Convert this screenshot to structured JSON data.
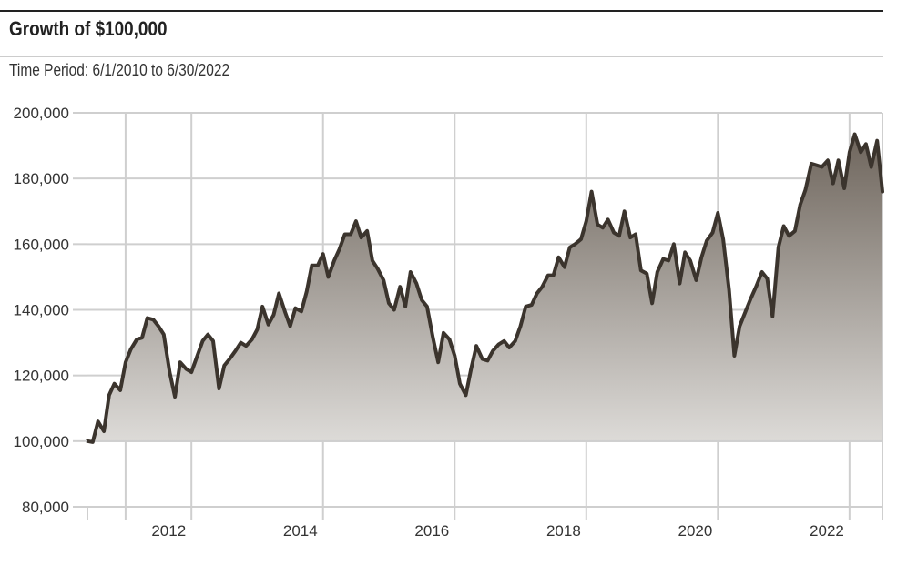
{
  "header": {
    "title": "Growth of $100,000",
    "subtitle": "Time Period: 6/1/2010 to 6/30/2022"
  },
  "chart_data": {
    "type": "area",
    "title": "Growth of $100,000",
    "subtitle": "Time Period: 6/1/2010 to 6/30/2022",
    "xlabel": "",
    "ylabel": "",
    "xlim": [
      2010.42,
      2022.5
    ],
    "ylim": [
      80000,
      200000
    ],
    "y_ticks": [
      80000,
      100000,
      120000,
      140000,
      160000,
      180000,
      200000
    ],
    "y_tick_labels": [
      "80,000",
      "100,000",
      "120,000",
      "140,000",
      "160,000",
      "180,000",
      "200,000"
    ],
    "x_ticks": [
      2012,
      2014,
      2016,
      2018,
      2020,
      2022
    ],
    "x_tick_labels": [
      "2012",
      "2014",
      "2016",
      "2018",
      "2020",
      "2022"
    ],
    "grid": true,
    "line_color": "#3b342d",
    "fill_top_color": "#6e655c",
    "fill_bottom_color": "#dddbd8",
    "series": [
      {
        "x": [
          2010.42,
          2010.5,
          2010.58,
          2010.67,
          2010.75,
          2010.83,
          2010.92,
          2011.0,
          2011.08,
          2011.17,
          2011.25,
          2011.33,
          2011.42,
          2011.5,
          2011.58,
          2011.67,
          2011.75,
          2011.83,
          2011.92,
          2012.0,
          2012.08,
          2012.17,
          2012.25,
          2012.33,
          2012.42,
          2012.5,
          2012.58,
          2012.67,
          2012.75,
          2012.83,
          2012.92,
          2013.0,
          2013.08,
          2013.17,
          2013.25,
          2013.33,
          2013.42,
          2013.5,
          2013.58,
          2013.67,
          2013.75,
          2013.83,
          2013.92,
          2014.0,
          2014.08,
          2014.17,
          2014.25,
          2014.33,
          2014.42,
          2014.5,
          2014.58,
          2014.67,
          2014.75,
          2014.83,
          2014.92,
          2015.0,
          2015.08,
          2015.17,
          2015.25,
          2015.33,
          2015.42,
          2015.5,
          2015.58,
          2015.67,
          2015.75,
          2015.83,
          2015.92,
          2016.0,
          2016.08,
          2016.17,
          2016.25,
          2016.33,
          2016.42,
          2016.5,
          2016.58,
          2016.67,
          2016.75,
          2016.83,
          2016.92,
          2017.0,
          2017.08,
          2017.17,
          2017.25,
          2017.33,
          2017.42,
          2017.5,
          2017.58,
          2017.67,
          2017.75,
          2017.83,
          2017.92,
          2018.0,
          2018.08,
          2018.17,
          2018.25,
          2018.33,
          2018.42,
          2018.5,
          2018.58,
          2018.67,
          2018.75,
          2018.83,
          2018.92,
          2019.0,
          2019.08,
          2019.17,
          2019.25,
          2019.33,
          2019.42,
          2019.5,
          2019.58,
          2019.67,
          2019.75,
          2019.83,
          2019.92,
          2020.0,
          2020.08,
          2020.17,
          2020.25,
          2020.33,
          2020.42,
          2020.5,
          2020.58,
          2020.67,
          2020.75,
          2020.83,
          2020.92,
          2021.0,
          2021.08,
          2021.17,
          2021.25,
          2021.33,
          2021.42,
          2021.5,
          2021.58,
          2021.67,
          2021.75,
          2021.83,
          2021.92,
          2022.0,
          2022.08,
          2022.17,
          2022.25,
          2022.33,
          2022.42,
          2022.5
        ],
        "y": [
          100000,
          99700,
          106000,
          103000,
          114000,
          117500,
          115500,
          124000,
          128000,
          131000,
          131500,
          137500,
          137000,
          135000,
          132500,
          121000,
          113500,
          124000,
          122000,
          121000,
          125500,
          130500,
          132500,
          130500,
          116000,
          123000,
          125000,
          127500,
          130000,
          129000,
          131000,
          134000,
          141000,
          135500,
          138500,
          145000,
          139500,
          135000,
          140500,
          139500,
          145500,
          153500,
          153500,
          157000,
          150000,
          155000,
          158500,
          163000,
          163000,
          167000,
          162000,
          164000,
          155000,
          152500,
          149000,
          142000,
          140000,
          147000,
          141000,
          151500,
          148000,
          143000,
          141000,
          131500,
          124000,
          133000,
          131000,
          126000,
          117500,
          114000,
          122000,
          129000,
          125000,
          124500,
          127500,
          129500,
          130500,
          128500,
          130500,
          135000,
          141000,
          141500,
          145000,
          147000,
          150500,
          150500,
          156000,
          153000,
          159000,
          160000,
          161500,
          167000,
          176000,
          166000,
          165000,
          167500,
          163500,
          162500,
          170000,
          162000,
          163000,
          152000,
          151000,
          142000,
          151500,
          155500,
          155000,
          160000,
          148000,
          157500,
          155000,
          149000,
          156000,
          161000,
          163500,
          169500,
          161500,
          146000,
          126000,
          135000,
          139500,
          143500,
          147000,
          151500,
          149500,
          138000,
          159000,
          165500,
          162500,
          164000,
          172000,
          176500,
          184500,
          184000,
          183500,
          185500,
          178500,
          185500,
          177000,
          188000,
          193500,
          188000,
          190500,
          183500,
          191500,
          176000
        ]
      }
    ]
  }
}
